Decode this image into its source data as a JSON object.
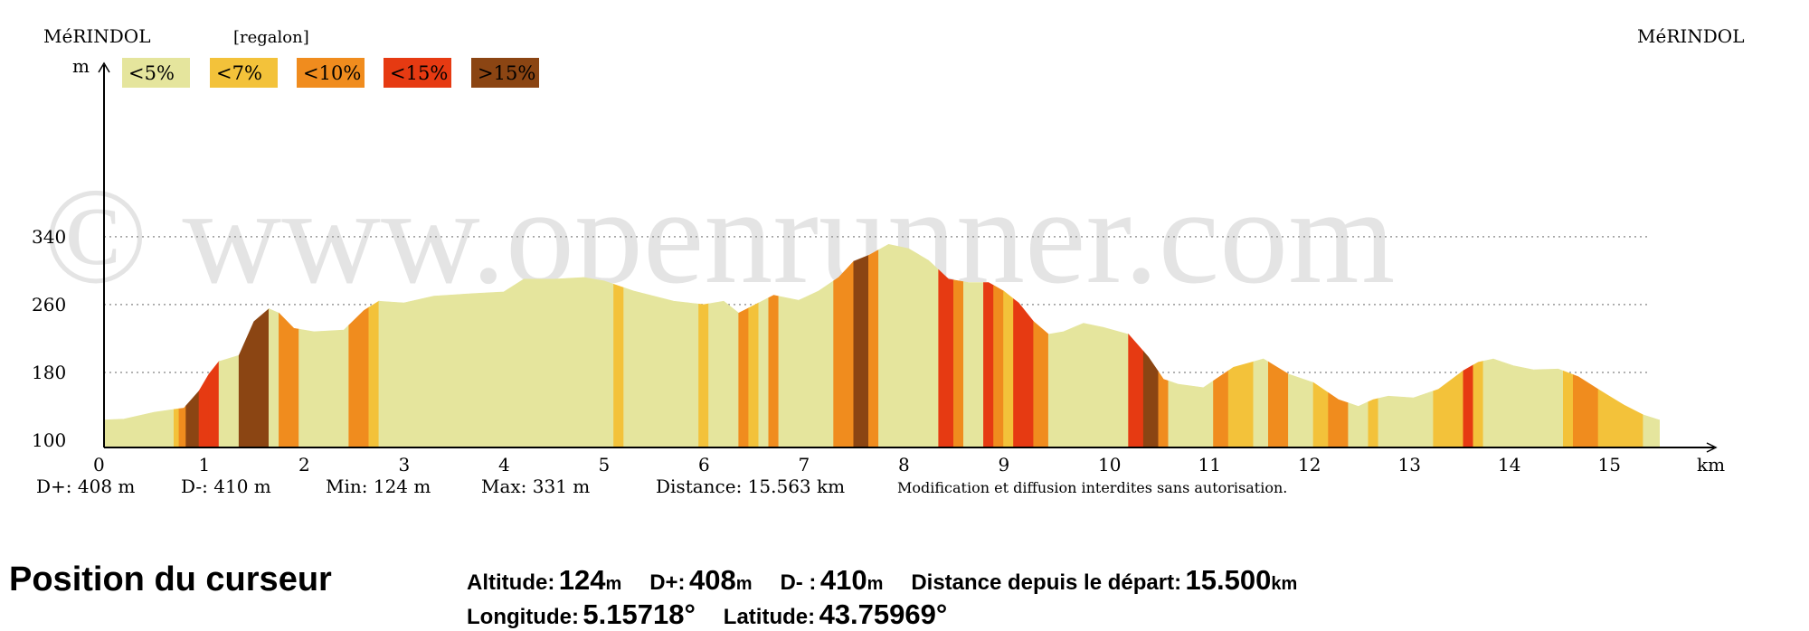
{
  "header": {
    "start_label": "MéRINDOL",
    "author_label": "[regalon]",
    "end_label": "MéRINDOL"
  },
  "watermark": "© www.openrunner.com",
  "legend": [
    {
      "label": "<5%",
      "color": "#e5e59d"
    },
    {
      "label": "<7%",
      "color": "#f3c23a"
    },
    {
      "label": "<10%",
      "color": "#f08c1e"
    },
    {
      "label": "<15%",
      "color": "#e63a12"
    },
    {
      "label": ">15%",
      "color": "#8b4513"
    }
  ],
  "chart_data": {
    "type": "area",
    "xlabel": "km",
    "ylabel": "m",
    "xlim": [
      0,
      15.563
    ],
    "ylim": [
      100,
      350
    ],
    "x_ticks": [
      0,
      1,
      2,
      3,
      4,
      5,
      6,
      7,
      8,
      9,
      10,
      11,
      12,
      13,
      14,
      15
    ],
    "y_ticks": [
      100,
      180,
      260,
      340
    ],
    "gridlines_y": [
      180,
      260,
      340
    ],
    "profile": {
      "x": [
        0,
        0.2,
        0.5,
        0.8,
        0.95,
        1.05,
        1.15,
        1.35,
        1.5,
        1.65,
        1.75,
        1.9,
        2.1,
        2.4,
        2.6,
        2.75,
        3.0,
        3.3,
        3.7,
        4.0,
        4.2,
        4.5,
        4.8,
        5.0,
        5.3,
        5.7,
        6.0,
        6.2,
        6.35,
        6.55,
        6.7,
        6.95,
        7.15,
        7.35,
        7.5,
        7.65,
        7.85,
        8.05,
        8.25,
        8.45,
        8.65,
        8.85,
        9.0,
        9.15,
        9.3,
        9.45,
        9.6,
        9.8,
        10.0,
        10.25,
        10.45,
        10.6,
        10.75,
        11.0,
        11.3,
        11.6,
        11.85,
        12.1,
        12.35,
        12.55,
        12.7,
        12.85,
        13.1,
        13.35,
        13.6,
        13.75,
        13.9,
        14.1,
        14.3,
        14.55,
        14.75,
        14.95,
        15.2,
        15.4,
        15.56
      ],
      "y": [
        124,
        125,
        133,
        138,
        158,
        178,
        193,
        200,
        240,
        255,
        250,
        232,
        228,
        230,
        253,
        264,
        262,
        270,
        273,
        275,
        290,
        290,
        292,
        288,
        276,
        264,
        260,
        264,
        250,
        262,
        271,
        265,
        276,
        292,
        311,
        318,
        331,
        326,
        312,
        290,
        286,
        286,
        276,
        262,
        240,
        225,
        228,
        238,
        233,
        225,
        198,
        172,
        166,
        162,
        186,
        196,
        178,
        168,
        148,
        140,
        148,
        152,
        150,
        160,
        182,
        192,
        196,
        188,
        183,
        184,
        175,
        160,
        142,
        130,
        124
      ]
    },
    "gradient_bands": [
      [
        0.0,
        0.7,
        "<5%"
      ],
      [
        0.7,
        0.75,
        "<7%"
      ],
      [
        0.75,
        0.82,
        "<10%"
      ],
      [
        0.82,
        0.95,
        ">15%"
      ],
      [
        0.95,
        1.05,
        "<15%"
      ],
      [
        1.05,
        1.15,
        "<15%"
      ],
      [
        1.15,
        1.35,
        "<5%"
      ],
      [
        1.35,
        1.65,
        ">15%"
      ],
      [
        1.65,
        1.75,
        "<5%"
      ],
      [
        1.75,
        1.95,
        "<10%"
      ],
      [
        1.95,
        2.45,
        "<5%"
      ],
      [
        2.45,
        2.65,
        "<10%"
      ],
      [
        2.65,
        2.75,
        "<7%"
      ],
      [
        2.75,
        5.1,
        "<5%"
      ],
      [
        5.1,
        5.2,
        "<7%"
      ],
      [
        5.2,
        5.95,
        "<5%"
      ],
      [
        5.95,
        6.05,
        "<7%"
      ],
      [
        6.05,
        6.35,
        "<5%"
      ],
      [
        6.35,
        6.45,
        "<10%"
      ],
      [
        6.45,
        6.55,
        "<7%"
      ],
      [
        6.55,
        6.65,
        "<5%"
      ],
      [
        6.65,
        6.75,
        "<10%"
      ],
      [
        6.75,
        7.3,
        "<5%"
      ],
      [
        7.3,
        7.5,
        "<10%"
      ],
      [
        7.5,
        7.65,
        ">15%"
      ],
      [
        7.65,
        7.75,
        "<10%"
      ],
      [
        7.75,
        8.35,
        "<5%"
      ],
      [
        8.35,
        8.5,
        "<15%"
      ],
      [
        8.5,
        8.6,
        "<10%"
      ],
      [
        8.6,
        8.8,
        "<5%"
      ],
      [
        8.8,
        8.9,
        "<15%"
      ],
      [
        8.9,
        9.0,
        "<10%"
      ],
      [
        9.0,
        9.1,
        "<7%"
      ],
      [
        9.1,
        9.3,
        "<15%"
      ],
      [
        9.3,
        9.45,
        "<10%"
      ],
      [
        9.45,
        10.25,
        "<5%"
      ],
      [
        10.25,
        10.4,
        "<15%"
      ],
      [
        10.4,
        10.55,
        ">15%"
      ],
      [
        10.55,
        10.65,
        "<10%"
      ],
      [
        10.65,
        11.1,
        "<5%"
      ],
      [
        11.1,
        11.25,
        "<10%"
      ],
      [
        11.25,
        11.5,
        "<7%"
      ],
      [
        11.5,
        11.65,
        "<5%"
      ],
      [
        11.65,
        11.85,
        "<10%"
      ],
      [
        11.85,
        12.1,
        "<5%"
      ],
      [
        12.1,
        12.25,
        "<7%"
      ],
      [
        12.25,
        12.45,
        "<10%"
      ],
      [
        12.45,
        12.65,
        "<5%"
      ],
      [
        12.65,
        12.75,
        "<7%"
      ],
      [
        12.75,
        13.3,
        "<5%"
      ],
      [
        13.3,
        13.6,
        "<7%"
      ],
      [
        13.6,
        13.7,
        "<15%"
      ],
      [
        13.7,
        13.8,
        "<7%"
      ],
      [
        13.8,
        14.6,
        "<5%"
      ],
      [
        14.6,
        14.7,
        "<7%"
      ],
      [
        14.7,
        14.95,
        "<10%"
      ],
      [
        14.95,
        15.2,
        "<7%"
      ],
      [
        15.2,
        15.4,
        "<7%"
      ],
      [
        15.4,
        15.563,
        "<5%"
      ]
    ]
  },
  "stats": {
    "d_plus": "D+: 408 m",
    "d_minus": "D-: 410 m",
    "min": "Min: 124 m",
    "max": "Max: 331 m",
    "distance": "Distance: 15.563 km",
    "notice": "Modification et diffusion interdites sans autorisation."
  },
  "cursor": {
    "title": "Position du curseur",
    "altitude_label": "Altitude:",
    "altitude_value": "124",
    "altitude_unit": "m",
    "dplus_label": "D+:",
    "dplus_value": "408",
    "dplus_unit": "m",
    "dminus_label": "D- :",
    "dminus_value": "410",
    "dminus_unit": "m",
    "distance_label": "Distance depuis le départ:",
    "distance_value": "15.500",
    "distance_unit": "km",
    "longitude_label": "Longitude:",
    "longitude_value": "5.15718°",
    "latitude_label": "Latitude:",
    "latitude_value": "43.75969°"
  }
}
